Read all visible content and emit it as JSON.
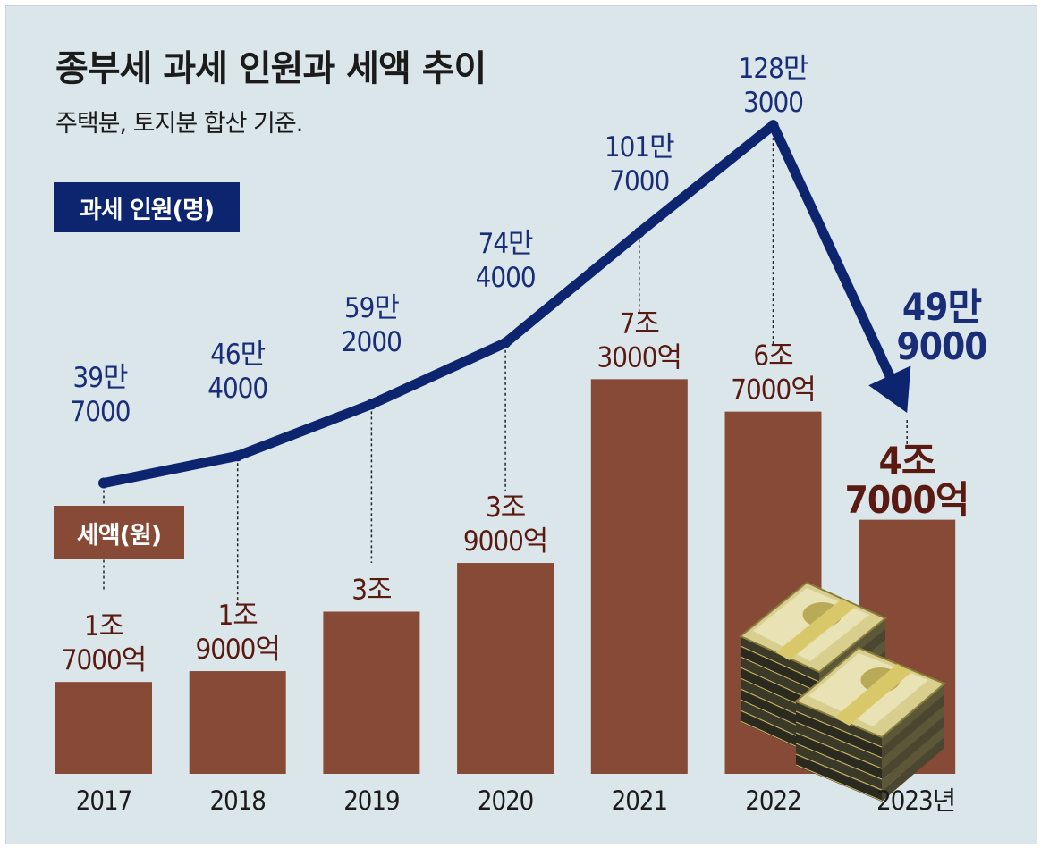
{
  "colors": {
    "background": "#dbe6ea",
    "bar": "#874a36",
    "line": "#0d246e",
    "people_label": "#1a2d78",
    "tax_label": "#5a1a12"
  },
  "icons": [
    "money-stack-icon"
  ],
  "chart_data": {
    "type": "bar+line",
    "title": "종부세 과세 인원과 세액 추이",
    "subtitle": "주택분, 토지분 합산 기준.",
    "categories": [
      "2017",
      "2018",
      "2019",
      "2020",
      "2021",
      "2022",
      "2023년"
    ],
    "series": [
      {
        "name": "과세 인원(명)",
        "type": "line",
        "values": [
          397000,
          464000,
          592000,
          744000,
          1017000,
          1283000,
          499000
        ],
        "labels": [
          [
            "39만",
            "7000"
          ],
          [
            "46만",
            "4000"
          ],
          [
            "59만",
            "2000"
          ],
          [
            "74만",
            "4000"
          ],
          [
            "101만",
            "7000"
          ],
          [
            "128만",
            "3000"
          ],
          [
            "49만",
            "9000"
          ]
        ]
      },
      {
        "name": "세액(원)",
        "type": "bar",
        "values": [
          1.7,
          1.9,
          3.0,
          3.9,
          7.3,
          6.7,
          4.7
        ],
        "unit": "조원",
        "labels": [
          [
            "1조",
            "7000억"
          ],
          [
            "1조",
            "9000억"
          ],
          [
            "3조"
          ],
          [
            "3조",
            "9000억"
          ],
          [
            "7조",
            "3000억"
          ],
          [
            "6조",
            "7000억"
          ],
          [
            "4조",
            "7000억"
          ]
        ]
      }
    ],
    "legend": {
      "people": "과세 인원(명)",
      "tax": "세액(원)"
    },
    "highlight_category": "2023년"
  }
}
